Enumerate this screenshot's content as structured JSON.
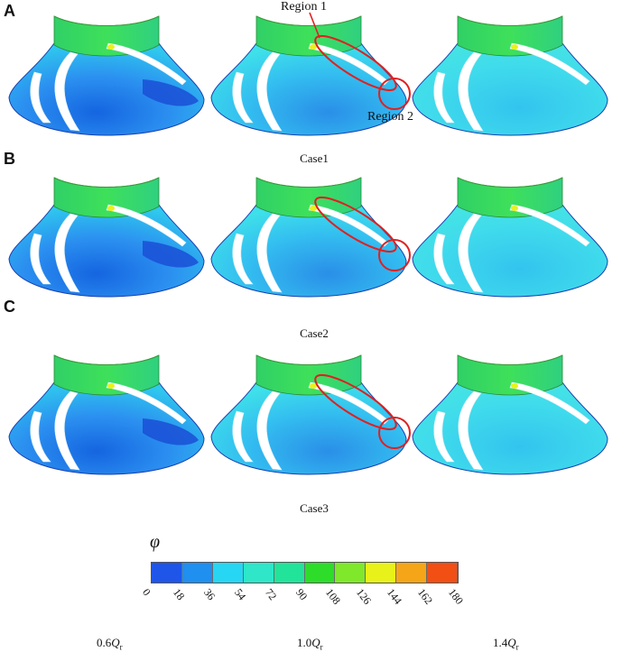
{
  "panels": [
    {
      "letter": "A",
      "case": "Case1"
    },
    {
      "letter": "B",
      "case": "Case2"
    },
    {
      "letter": "C",
      "case": "Case3"
    }
  ],
  "annotations": {
    "region1": "Region 1",
    "region2": "Region 2"
  },
  "colorbar": {
    "symbol": "φ",
    "ticks": [
      "0",
      "18",
      "36",
      "54",
      "72",
      "90",
      "108",
      "126",
      "144",
      "162",
      "180"
    ],
    "colors": [
      "#1f55e8",
      "#1f8ff0",
      "#27d6f2",
      "#2fe6c8",
      "#22e39a",
      "#2ddd2a",
      "#7fe82a",
      "#e8f21a",
      "#f5a618",
      "#f24f14"
    ]
  },
  "flow_rates": [
    {
      "coef": "0.6",
      "sym": "Q",
      "sub": "r"
    },
    {
      "coef": "1.0",
      "sym": "Q",
      "sub": "r"
    },
    {
      "coef": "1.4",
      "sym": "Q",
      "sub": "r"
    }
  ]
}
